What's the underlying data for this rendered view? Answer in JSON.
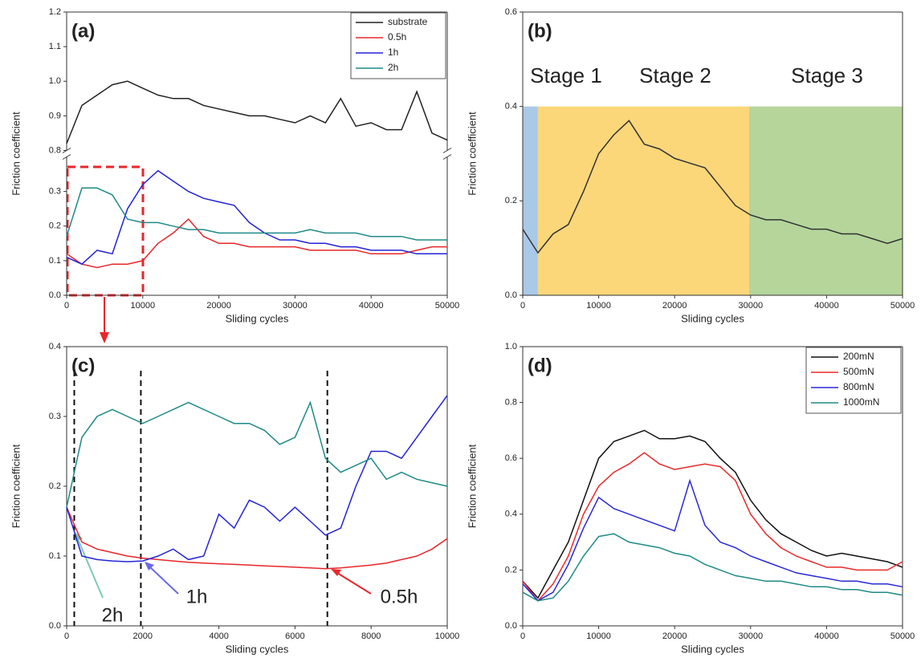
{
  "chart_data": [
    {
      "type": "line",
      "panel_label": "(a)",
      "x_label": "Sliding cycles",
      "y_label": "Friction coefficient",
      "x": [
        0,
        2000,
        4000,
        6000,
        8000,
        10000,
        12000,
        14000,
        16000,
        18000,
        20000,
        22000,
        24000,
        26000,
        28000,
        30000,
        32000,
        34000,
        36000,
        38000,
        40000,
        42000,
        44000,
        46000,
        48000,
        50000
      ],
      "series": [
        {
          "name": "substrate",
          "color": "#222222",
          "values": [
            0.82,
            0.93,
            0.96,
            0.99,
            1.0,
            0.98,
            0.96,
            0.95,
            0.95,
            0.93,
            0.92,
            0.91,
            0.9,
            0.9,
            0.89,
            0.88,
            0.9,
            0.88,
            0.95,
            0.87,
            0.88,
            0.86,
            0.86,
            0.97,
            0.85,
            0.83
          ]
        },
        {
          "name": "0.5h",
          "color": "#e8262a",
          "values": [
            0.12,
            0.09,
            0.08,
            0.09,
            0.09,
            0.1,
            0.15,
            0.18,
            0.22,
            0.17,
            0.15,
            0.15,
            0.14,
            0.14,
            0.14,
            0.14,
            0.13,
            0.13,
            0.13,
            0.13,
            0.12,
            0.12,
            0.12,
            0.13,
            0.14,
            0.14
          ]
        },
        {
          "name": "1h",
          "color": "#2323d6",
          "values": [
            0.11,
            0.09,
            0.13,
            0.12,
            0.25,
            0.32,
            0.36,
            0.33,
            0.3,
            0.28,
            0.27,
            0.26,
            0.21,
            0.18,
            0.16,
            0.16,
            0.15,
            0.15,
            0.14,
            0.14,
            0.13,
            0.13,
            0.13,
            0.12,
            0.12,
            0.12
          ]
        },
        {
          "name": "2h",
          "color": "#1e8a86",
          "values": [
            0.17,
            0.31,
            0.31,
            0.29,
            0.22,
            0.21,
            0.21,
            0.2,
            0.19,
            0.19,
            0.18,
            0.18,
            0.18,
            0.18,
            0.18,
            0.18,
            0.19,
            0.18,
            0.18,
            0.18,
            0.17,
            0.17,
            0.17,
            0.16,
            0.16,
            0.16
          ]
        }
      ],
      "xlim": [
        0,
        50000
      ],
      "xticks": [
        0,
        10000,
        20000,
        30000,
        40000,
        50000
      ],
      "ylim": [
        0,
        1.2
      ],
      "ybreak": [
        0.4,
        0.8
      ],
      "yticks": [
        {
          "value": 0,
          "label": "0.0"
        },
        0.1,
        0.2,
        0.3,
        0.8,
        0.9,
        {
          "value": 1,
          "label": "1.0"
        },
        1.1,
        1.2
      ],
      "legend": "upper right"
    },
    {
      "type": "line",
      "panel_label": "(b)",
      "x_label": "Sliding cycles",
      "y_label": "Friction coefficient",
      "x": [
        0,
        2000,
        4000,
        6000,
        8000,
        10000,
        12000,
        14000,
        16000,
        18000,
        20000,
        22000,
        24000,
        26000,
        28000,
        30000,
        32000,
        34000,
        36000,
        38000,
        40000,
        42000,
        44000,
        46000,
        48000,
        50000
      ],
      "series": [
        {
          "color": "#333333",
          "values": [
            0.14,
            0.09,
            0.13,
            0.15,
            0.22,
            0.3,
            0.34,
            0.37,
            0.32,
            0.31,
            0.29,
            0.28,
            0.27,
            0.23,
            0.19,
            0.17,
            0.16,
            0.16,
            0.15,
            0.14,
            0.14,
            0.13,
            0.13,
            0.12,
            0.11,
            0.12
          ]
        }
      ],
      "stages": [
        {
          "name": "Stage 1",
          "range": [
            0,
            2000
          ],
          "color": "#a9c9e8"
        },
        {
          "name": "Stage 2",
          "range": [
            2000,
            29800
          ],
          "color": "#fbd77a"
        },
        {
          "name": "Stage 3",
          "range": [
            29800,
            50000
          ],
          "color": "#b5d59b"
        }
      ],
      "stage_top": 0.4,
      "xlim": [
        0,
        50000
      ],
      "xticks": [
        0,
        10000,
        20000,
        30000,
        40000,
        50000
      ],
      "ylim": [
        0,
        0.6
      ],
      "yticks": [
        {
          "value": 0,
          "label": "0.0"
        },
        0.2,
        0.4,
        0.6
      ]
    },
    {
      "type": "line",
      "panel_label": "(c)",
      "x_label": "Sliding cycles",
      "y_label": "Friction coefficient",
      "x": [
        0,
        400,
        800,
        1200,
        1600,
        2000,
        2400,
        2800,
        3200,
        3600,
        4000,
        4400,
        4800,
        5200,
        5600,
        6000,
        6400,
        6800,
        7200,
        7600,
        8000,
        8400,
        8800,
        9200,
        9600,
        10000
      ],
      "series": [
        {
          "color": "#e8262a",
          "values": [
            0.17,
            0.12,
            0.11,
            0.105,
            0.1,
            0.097,
            0.095,
            0.093,
            0.091,
            0.09,
            0.089,
            0.088,
            0.087,
            0.086,
            0.085,
            0.084,
            0.083,
            0.082,
            0.083,
            0.085,
            0.087,
            0.09,
            0.095,
            0.1,
            0.11,
            0.125
          ]
        },
        {
          "color": "#2323d6",
          "values": [
            0.17,
            0.1,
            0.095,
            0.093,
            0.092,
            0.093,
            0.1,
            0.11,
            0.095,
            0.1,
            0.16,
            0.14,
            0.18,
            0.17,
            0.15,
            0.17,
            0.15,
            0.13,
            0.14,
            0.2,
            0.25,
            0.25,
            0.24,
            0.27,
            0.3,
            0.33
          ]
        },
        {
          "color": "#1e8a86",
          "values": [
            0.17,
            0.27,
            0.3,
            0.31,
            0.3,
            0.29,
            0.3,
            0.31,
            0.32,
            0.31,
            0.3,
            0.29,
            0.29,
            0.28,
            0.26,
            0.27,
            0.32,
            0.24,
            0.22,
            0.23,
            0.24,
            0.21,
            0.22,
            0.21,
            0.205,
            0.2
          ]
        }
      ],
      "markers": [
        200,
        1950,
        6850
      ],
      "annotations": [
        "2h",
        "1h",
        "0.5h"
      ],
      "xlim": [
        0,
        10000
      ],
      "xticks": [
        0,
        2000,
        4000,
        6000,
        8000,
        10000
      ],
      "ylim": [
        0,
        0.4
      ],
      "yticks": [
        {
          "value": 0,
          "label": "0.0"
        },
        0.1,
        0.2,
        0.3,
        0.4
      ]
    },
    {
      "type": "line",
      "panel_label": "(d)",
      "x_label": "Sliding cycles",
      "y_label": "Friction coefficient",
      "x": [
        0,
        2000,
        4000,
        6000,
        8000,
        10000,
        12000,
        14000,
        16000,
        18000,
        20000,
        22000,
        24000,
        26000,
        28000,
        30000,
        32000,
        34000,
        36000,
        38000,
        40000,
        42000,
        44000,
        46000,
        48000,
        50000
      ],
      "series": [
        {
          "name": "200mN",
          "color": "#111111",
          "values": [
            0.16,
            0.1,
            0.2,
            0.3,
            0.45,
            0.6,
            0.66,
            0.68,
            0.7,
            0.67,
            0.67,
            0.68,
            0.66,
            0.6,
            0.55,
            0.45,
            0.38,
            0.33,
            0.3,
            0.27,
            0.25,
            0.26,
            0.25,
            0.24,
            0.23,
            0.21
          ]
        },
        {
          "name": "500mN",
          "color": "#e82a2a",
          "values": [
            0.16,
            0.09,
            0.15,
            0.25,
            0.4,
            0.5,
            0.55,
            0.58,
            0.62,
            0.58,
            0.56,
            0.57,
            0.58,
            0.57,
            0.52,
            0.4,
            0.33,
            0.28,
            0.25,
            0.23,
            0.21,
            0.21,
            0.2,
            0.2,
            0.2,
            0.23
          ]
        },
        {
          "name": "800mN",
          "color": "#2a2ad6",
          "values": [
            0.15,
            0.09,
            0.12,
            0.22,
            0.35,
            0.46,
            0.42,
            0.4,
            0.38,
            0.36,
            0.34,
            0.52,
            0.36,
            0.3,
            0.28,
            0.25,
            0.23,
            0.21,
            0.19,
            0.18,
            0.17,
            0.16,
            0.16,
            0.15,
            0.15,
            0.14
          ]
        },
        {
          "name": "1000mN",
          "color": "#1e8a86",
          "values": [
            0.12,
            0.09,
            0.1,
            0.16,
            0.25,
            0.32,
            0.33,
            0.3,
            0.29,
            0.28,
            0.26,
            0.25,
            0.22,
            0.2,
            0.18,
            0.17,
            0.16,
            0.16,
            0.15,
            0.14,
            0.14,
            0.13,
            0.13,
            0.12,
            0.12,
            0.11
          ]
        }
      ],
      "xlim": [
        0,
        50000
      ],
      "xticks": [
        0,
        10000,
        20000,
        30000,
        40000,
        50000
      ],
      "ylim": [
        0,
        1
      ],
      "yticks": [
        {
          "value": 0,
          "label": "0.0"
        },
        0.2,
        0.4,
        0.6,
        0.8,
        {
          "value": 1,
          "label": "1.0"
        }
      ],
      "legend": "upper right"
    }
  ]
}
